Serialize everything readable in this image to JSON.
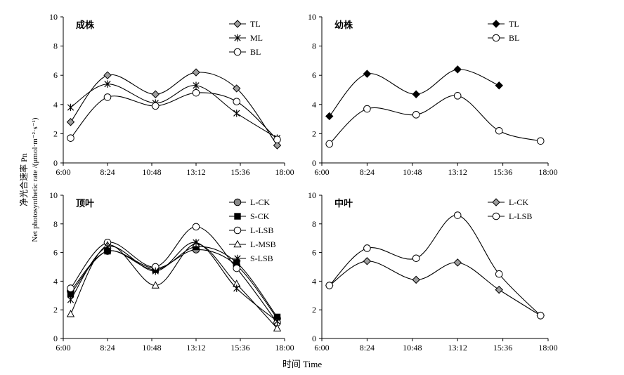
{
  "figure": {
    "xlabel": "时间 Time",
    "ylabel": "净光合速率 Pn",
    "ylabel_en": "Net photosynthetic rate /(μmol·m⁻²·s⁻¹)"
  },
  "chart_data": [
    {
      "type": "line",
      "title": "成株",
      "x_ticks": [
        "6:00",
        "8:24",
        "10:48",
        "13:12",
        "15:36",
        "18:00"
      ],
      "xlim": [
        "6:00",
        "18:00"
      ],
      "ylim": [
        0,
        10
      ],
      "y_ticks": [
        0,
        2,
        4,
        6,
        8,
        10
      ],
      "legend_position": "top-right",
      "x": [
        "6:24",
        "8:24",
        "11:00",
        "13:12",
        "15:24",
        "17:36"
      ],
      "series": [
        {
          "name": "TL",
          "marker": "diamond",
          "fill": "#9e9e9e",
          "values": [
            2.8,
            6.0,
            4.7,
            6.2,
            5.1,
            1.2
          ]
        },
        {
          "name": "ML",
          "marker": "star",
          "fill": "#000000",
          "values": [
            3.8,
            5.4,
            4.1,
            5.3,
            3.4,
            1.7
          ]
        },
        {
          "name": "BL",
          "marker": "circle",
          "fill": "#ffffff",
          "values": [
            1.7,
            4.5,
            3.9,
            4.8,
            4.2,
            1.6
          ]
        }
      ]
    },
    {
      "type": "line",
      "title": "幼株",
      "x_ticks": [
        "6:00",
        "8:24",
        "10:48",
        "13:12",
        "15:36",
        "18:00"
      ],
      "xlim": [
        "6:00",
        "18:00"
      ],
      "ylim": [
        0,
        10
      ],
      "y_ticks": [
        0,
        2,
        4,
        6,
        8,
        10
      ],
      "legend_position": "top-right",
      "x": [
        "6:24",
        "8:24",
        "11:00",
        "13:12",
        "15:24",
        "17:36"
      ],
      "series": [
        {
          "name": "TL",
          "marker": "diamond",
          "fill": "#000000",
          "values": [
            3.2,
            6.1,
            4.7,
            6.4,
            5.3,
            null
          ]
        },
        {
          "name": "BL",
          "marker": "circle",
          "fill": "#ffffff",
          "values": [
            1.3,
            3.7,
            3.3,
            4.6,
            2.2,
            1.5
          ]
        }
      ]
    },
    {
      "type": "line",
      "title": "顶叶",
      "x_ticks": [
        "6:00",
        "8:24",
        "10:48",
        "13:12",
        "15:36",
        "18:00"
      ],
      "xlim": [
        "6:00",
        "18:00"
      ],
      "ylim": [
        0,
        10
      ],
      "y_ticks": [
        0,
        2,
        4,
        6,
        8,
        10
      ],
      "legend_position": "top-right",
      "x": [
        "6:24",
        "8:24",
        "11:00",
        "13:12",
        "15:24",
        "17:36"
      ],
      "series": [
        {
          "name": "L-CK",
          "marker": "circle",
          "fill": "#8a8a8a",
          "values": [
            3.3,
            6.1,
            4.9,
            6.2,
            5.1,
            1.4
          ]
        },
        {
          "name": "S-CK",
          "marker": "square",
          "fill": "#000000",
          "values": [
            3.1,
            6.1,
            4.8,
            6.4,
            5.3,
            1.5
          ]
        },
        {
          "name": "L-LSB",
          "marker": "circle",
          "fill": "#ffffff",
          "values": [
            3.5,
            6.7,
            5.0,
            7.8,
            4.9,
            1.1
          ]
        },
        {
          "name": "L-MSB",
          "marker": "triangle",
          "fill": "#ffffff",
          "values": [
            1.7,
            6.5,
            3.7,
            6.6,
            3.8,
            0.7
          ]
        },
        {
          "name": "S-LSB",
          "marker": "star",
          "fill": "#000000",
          "values": [
            2.7,
            6.4,
            4.7,
            6.7,
            3.5,
            1.2
          ]
        }
      ]
    },
    {
      "type": "line",
      "title": "中叶",
      "x_ticks": [
        "6:00",
        "8:24",
        "10:48",
        "13:12",
        "15:36",
        "18:00"
      ],
      "xlim": [
        "6:00",
        "18:00"
      ],
      "ylim": [
        0,
        10
      ],
      "y_ticks": [
        0,
        2,
        4,
        6,
        8,
        10
      ],
      "legend_position": "top-right",
      "x": [
        "6:24",
        "8:24",
        "11:00",
        "13:12",
        "15:24",
        "17:36"
      ],
      "series": [
        {
          "name": "L-CK",
          "marker": "diamond",
          "fill": "#9e9e9e",
          "values": [
            3.7,
            5.4,
            4.1,
            5.3,
            3.4,
            1.6
          ]
        },
        {
          "name": "L-LSB",
          "marker": "circle",
          "fill": "#ffffff",
          "values": [
            3.7,
            6.3,
            5.6,
            8.6,
            4.5,
            1.6
          ]
        }
      ]
    }
  ]
}
